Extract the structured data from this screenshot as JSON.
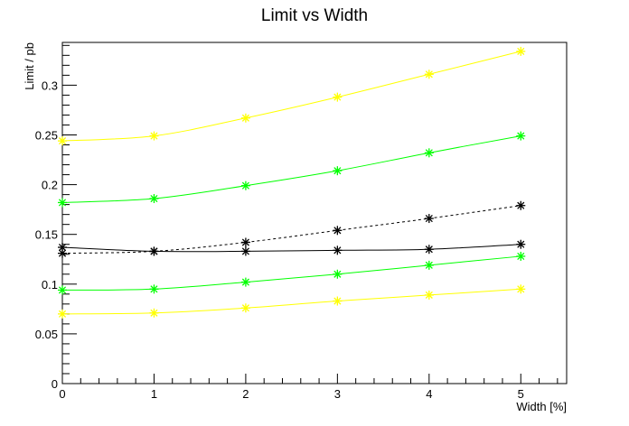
{
  "chart_data": {
    "type": "line",
    "title": "Limit vs Width",
    "xlabel": "Width [%]",
    "ylabel": "Limit / pb",
    "xlim": [
      0,
      5.5
    ],
    "ylim": [
      0,
      0.343
    ],
    "x_ticks": [
      0,
      1,
      2,
      3,
      4,
      5
    ],
    "x_tick_labels": [
      "0",
      "1",
      "2",
      "3",
      "4",
      "5"
    ],
    "y_ticks": [
      0,
      0.05,
      0.1,
      0.15,
      0.2,
      0.25,
      0.3
    ],
    "y_tick_labels": [
      "0",
      "0.05",
      "0.1",
      "0.15",
      "0.2",
      "0.25",
      "0.3"
    ],
    "grid": false,
    "x": [
      0,
      1,
      2,
      3,
      4,
      5
    ],
    "series": [
      {
        "color": "#ffff00",
        "dashed": false,
        "values": [
          0.244,
          0.249,
          0.267,
          0.288,
          0.311,
          0.334
        ]
      },
      {
        "color": "#00ff00",
        "dashed": false,
        "values": [
          0.182,
          0.186,
          0.199,
          0.214,
          0.232,
          0.249
        ]
      },
      {
        "color": "#000000",
        "dashed": true,
        "values": [
          0.131,
          0.133,
          0.142,
          0.154,
          0.166,
          0.179
        ]
      },
      {
        "color": "#000000",
        "dashed": false,
        "values": [
          0.137,
          0.133,
          0.133,
          0.134,
          0.135,
          0.14
        ]
      },
      {
        "color": "#00ff00",
        "dashed": false,
        "values": [
          0.094,
          0.095,
          0.102,
          0.11,
          0.119,
          0.128
        ]
      },
      {
        "color": "#ffff00",
        "dashed": false,
        "values": [
          0.07,
          0.071,
          0.076,
          0.083,
          0.089,
          0.095
        ]
      }
    ]
  }
}
